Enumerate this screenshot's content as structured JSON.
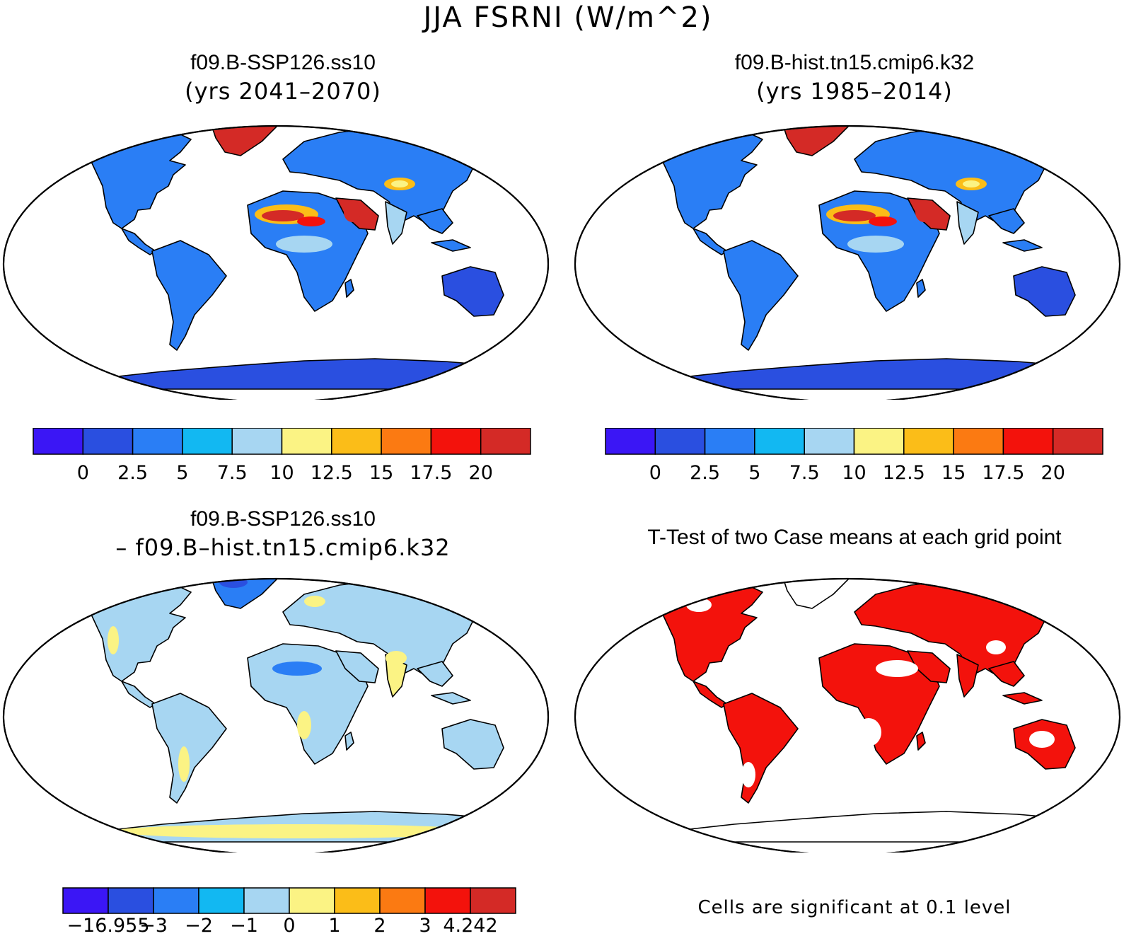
{
  "title": "JJA FSRNI (W/m^2)",
  "panels": [
    {
      "id": "p1",
      "title": "f09.B-SSP126.ss10",
      "subtitle": "(yrs 2041–2070)"
    },
    {
      "id": "p2",
      "title": "f09.B-hist.tn15.cmip6.k32",
      "subtitle": "(yrs 1985–2014)"
    },
    {
      "id": "p3",
      "title": "f09.B-SSP126.ss10",
      "subtitle": "– f09.B–hist.tn15.cmip6.k32"
    },
    {
      "id": "p4",
      "title": "T-Test of two Case means at each grid point",
      "note": "Cells are significant at 0.1 level"
    }
  ],
  "colorbars": {
    "abs": {
      "colors": [
        "#3b16f5",
        "#2a4fe0",
        "#2a7ef5",
        "#12b8f2",
        "#a7d6f2",
        "#fbf384",
        "#fbbd18",
        "#fb7a12",
        "#f3120c",
        "#d42a26"
      ],
      "labels": [
        "0",
        "2.5",
        "5",
        "7.5",
        "10",
        "12.5",
        "15",
        "17.5",
        "20"
      ]
    },
    "diff": {
      "colors": [
        "#3b16f5",
        "#2a4fe0",
        "#2a7ef5",
        "#12b8f2",
        "#a7d6f2",
        "#fbf384",
        "#fbbd18",
        "#fb7a12",
        "#f3120c",
        "#d42a26"
      ],
      "labels": [
        "−16.955",
        "−3",
        "−2",
        "−1",
        "0",
        "1",
        "2",
        "3",
        "4.242"
      ]
    }
  },
  "map_colors": {
    "low": "#2a4fe0",
    "mid": "#2a7ef5",
    "light": "#a7d6f2",
    "yellow": "#fbf384",
    "orange": "#fbbd18",
    "red": "#d42a26",
    "bright_red": "#f3120c",
    "white": "#ffffff",
    "deep": "#3b16f5"
  }
}
